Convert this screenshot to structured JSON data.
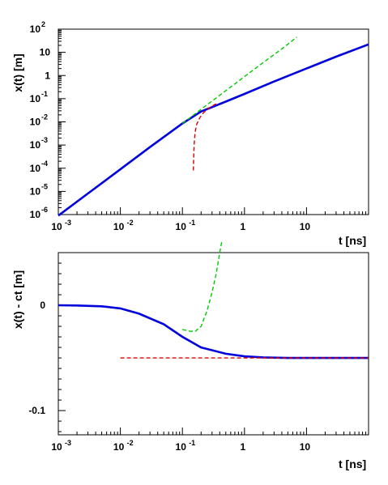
{
  "chart_data": [
    {
      "type": "line",
      "xlabel": "t [ns]",
      "ylabel": "x(t)  [m]",
      "xscale": "log",
      "yscale": "log",
      "xlim": [
        0.001,
        100
      ],
      "ylim": [
        1e-06,
        100
      ],
      "x_tick_labels": [
        {
          "base": "10",
          "exp": "-3"
        },
        {
          "base": "10",
          "exp": "-2"
        },
        {
          "base": "10",
          "exp": "-1"
        },
        {
          "base": "1",
          "exp": ""
        },
        {
          "base": "10",
          "exp": ""
        }
      ],
      "y_tick_labels": [
        {
          "base": "10",
          "exp": "2"
        },
        {
          "base": "10",
          "exp": ""
        },
        {
          "base": "1",
          "exp": ""
        },
        {
          "base": "10",
          "exp": "-1"
        },
        {
          "base": "10",
          "exp": "-2"
        },
        {
          "base": "10",
          "exp": "-3"
        },
        {
          "base": "10",
          "exp": "-4"
        },
        {
          "base": "10",
          "exp": "-5"
        },
        {
          "base": "10",
          "exp": "-6"
        }
      ],
      "series": [
        {
          "color": "#0000dd",
          "style": "solid",
          "x": [
            0.001,
            0.003,
            0.01,
            0.03,
            0.1,
            0.2,
            0.5,
            1,
            3,
            10,
            30,
            100
          ],
          "y": [
            9e-07,
            8.1e-06,
            9e-05,
            0.00081,
            0.0085,
            0.028,
            0.075,
            0.16,
            0.55,
            2.0,
            6.5,
            22
          ]
        },
        {
          "color": "#00cc00",
          "style": "dashed",
          "x": [
            0.1,
            0.2,
            0.5,
            1,
            2,
            4,
            7
          ],
          "y": [
            0.0085,
            0.035,
            0.22,
            0.9,
            3.6,
            14,
            45
          ]
        },
        {
          "color": "#dd0000",
          "style": "dashed",
          "x": [
            0.15,
            0.152,
            0.155,
            0.16,
            0.17,
            0.19,
            0.22,
            0.27,
            0.35
          ],
          "y": [
            8e-05,
            0.0003,
            0.0012,
            0.0035,
            0.008,
            0.015,
            0.025,
            0.04,
            0.06
          ]
        }
      ]
    },
    {
      "type": "line",
      "xlabel": "t [ns]",
      "ylabel": "x(t) - ct  [m]",
      "xscale": "log",
      "xlim": [
        0.001,
        100
      ],
      "ylim": [
        -0.123,
        0.05
      ],
      "x_tick_labels": [
        {
          "base": "10",
          "exp": "-3"
        },
        {
          "base": "10",
          "exp": "-2"
        },
        {
          "base": "10",
          "exp": "-1"
        },
        {
          "base": "1",
          "exp": ""
        },
        {
          "base": "10",
          "exp": ""
        }
      ],
      "y_ticks": [
        0,
        -0.1
      ],
      "y_tick_labels": [
        "0",
        "-0.1"
      ],
      "series": [
        {
          "color": "#0000dd",
          "style": "solid",
          "x": [
            0.001,
            0.002,
            0.005,
            0.01,
            0.02,
            0.05,
            0.1,
            0.2,
            0.5,
            1,
            2,
            5,
            10,
            30,
            100
          ],
          "y": [
            0.0,
            -0.0002,
            -0.001,
            -0.003,
            -0.008,
            -0.018,
            -0.03,
            -0.04,
            -0.046,
            -0.0485,
            -0.0495,
            -0.05,
            -0.05,
            -0.05,
            -0.05
          ]
        },
        {
          "color": "#00cc00",
          "style": "dashed",
          "x": [
            0.1,
            0.13,
            0.16,
            0.2,
            0.25,
            0.3,
            0.35,
            0.4,
            0.43
          ],
          "y": [
            -0.023,
            -0.0245,
            -0.025,
            -0.02,
            -0.005,
            0.012,
            0.03,
            0.05,
            0.06
          ]
        },
        {
          "color": "#dd0000",
          "style": "dashed",
          "x": [
            0.01,
            100
          ],
          "y": [
            -0.05,
            -0.05
          ]
        }
      ]
    }
  ]
}
